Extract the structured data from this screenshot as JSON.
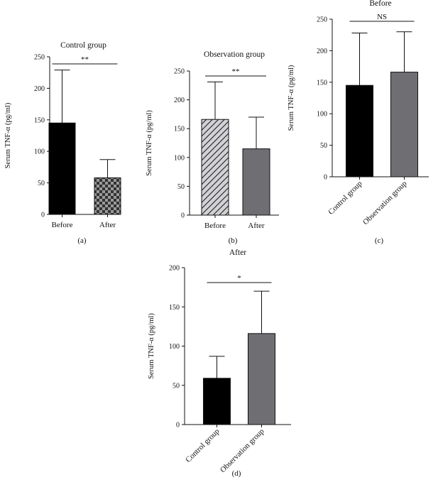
{
  "chart_data": [
    {
      "type": "bar",
      "panel_label": "(a)",
      "title": "Control group",
      "ylabel": "Serum TNF-α (pg/ml)",
      "xlabel": "",
      "ylim": [
        0,
        250
      ],
      "yticks": [
        "0",
        "50",
        "100",
        "150",
        "200",
        "250"
      ],
      "categories": [
        "Before",
        "After"
      ],
      "values": [
        145,
        58
      ],
      "error_upper": [
        229,
        87
      ],
      "fills": [
        "black",
        "checker"
      ],
      "significance": "**",
      "grid": false,
      "rotated_labels": false
    },
    {
      "type": "bar",
      "panel_label": "(b)",
      "title": "Observation group",
      "ylabel": "Serum TNF-α (pg/ml)",
      "xlabel": "",
      "ylim": [
        0,
        250
      ],
      "yticks": [
        "0",
        "50",
        "100",
        "150",
        "200",
        "250"
      ],
      "categories": [
        "Before",
        "After"
      ],
      "values": [
        166,
        115
      ],
      "error_upper": [
        231,
        170
      ],
      "fills": [
        "hatch",
        "gray"
      ],
      "significance": "**",
      "grid": false,
      "rotated_labels": false
    },
    {
      "type": "bar",
      "panel_label": "(c)",
      "title": "Before",
      "ylabel": "Serum TNF-α (pg/ml)",
      "xlabel": "",
      "ylim": [
        0,
        250
      ],
      "yticks": [
        "0",
        "50",
        "100",
        "150",
        "200",
        "250"
      ],
      "categories": [
        "Control group",
        "Observation group"
      ],
      "values": [
        145,
        166
      ],
      "error_upper": [
        228,
        230
      ],
      "fills": [
        "black",
        "gray"
      ],
      "significance": "NS",
      "grid": false,
      "rotated_labels": true
    },
    {
      "type": "bar",
      "panel_label": "(d)",
      "title": "After",
      "ylabel": "Serum TNF-α (pg/ml)",
      "xlabel": "",
      "ylim": [
        0,
        200
      ],
      "yticks": [
        "0",
        "50",
        "100",
        "150",
        "200"
      ],
      "categories": [
        "Control group",
        "Observation group"
      ],
      "values": [
        59,
        116
      ],
      "error_upper": [
        87,
        170
      ],
      "fills": [
        "black",
        "gray"
      ],
      "significance": "*",
      "grid": false,
      "rotated_labels": true
    }
  ],
  "colors": {
    "black_bar": "#000000",
    "gray_bar": "#6f6f73",
    "hatch_bg": "#d2d2d6",
    "checker_dark": "#333333",
    "checker_light": "#9a9a9a"
  }
}
